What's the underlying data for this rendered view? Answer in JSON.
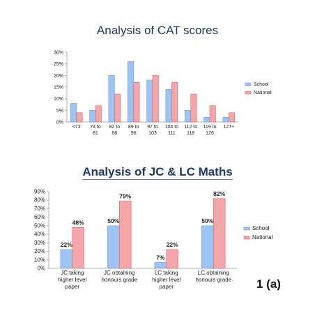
{
  "figure_label": "1 (a)",
  "colors": {
    "school_fill": "#9ec3f5",
    "school_stroke": "#5b8fd8",
    "national_fill": "#f4a6a8",
    "national_stroke": "#d9535a",
    "axis": "#b0b0b0",
    "title": "#1f3864"
  },
  "chart_data": [
    {
      "type": "bar",
      "title": "Analysis of CAT scores",
      "categories": [
        "<73",
        "74 to 81",
        "82 to 88",
        "89 to 96",
        "97 to 103",
        "104 to 111",
        "112 to 118",
        "119 to 126",
        "127+"
      ],
      "series": [
        {
          "name": "School",
          "values": [
            8,
            5,
            20,
            26,
            18,
            14,
            5,
            2,
            2
          ]
        },
        {
          "name": "National",
          "values": [
            4,
            7,
            12,
            17,
            20,
            17,
            12,
            7,
            4
          ]
        }
      ],
      "y_ticks": [
        "0%",
        "5%",
        "10%",
        "15%",
        "20%",
        "25%",
        "30%"
      ],
      "ylim": [
        0,
        30
      ],
      "legend_position": "right",
      "grid": false
    },
    {
      "type": "bar",
      "title": "Analysis of JC & LC Maths",
      "categories": [
        "JC taking higher level paper",
        "JC obtaining honours grade",
        "LC taking higher level paper",
        "LC obtaining honours grade"
      ],
      "series": [
        {
          "name": "School",
          "values": [
            22,
            50,
            7,
            50
          ],
          "labels": [
            "22%",
            "50%",
            "7%",
            "50%"
          ]
        },
        {
          "name": "National",
          "values": [
            48,
            79,
            22,
            82
          ],
          "labels": [
            "48%",
            "79%",
            "22%",
            "82%"
          ]
        }
      ],
      "y_ticks": [
        "0%",
        "10%",
        "20%",
        "30%",
        "40%",
        "50%",
        "60%",
        "70%",
        "80%",
        "90%"
      ],
      "ylim": [
        0,
        90
      ],
      "legend_position": "right",
      "grid": false
    }
  ]
}
